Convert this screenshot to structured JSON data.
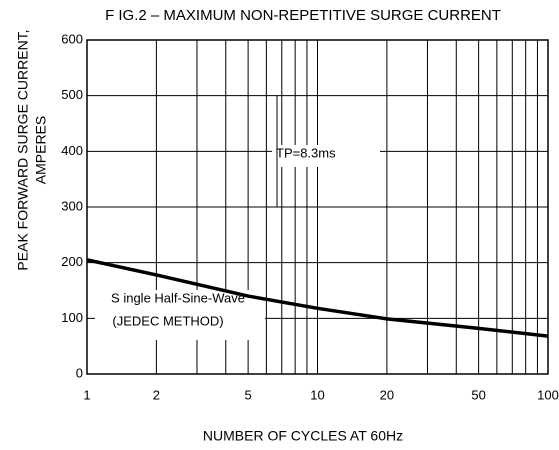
{
  "chart_data": {
    "type": "line",
    "title": "F IG.2 – MAXIMUM NON-REPETITIVE SURGE CURRENT",
    "x_label": "NUMBER OF CYCLES AT 60Hz",
    "y_label": [
      "PEAK FORWARD SURGE CURRENT,",
      "AMPERES"
    ],
    "annotations": [
      "TP=8.3ms",
      "S ingle Half-Sine-Wave",
      "(JEDEC METHOD)"
    ],
    "x_scale": "log",
    "xlim": [
      1,
      100
    ],
    "xticks": [
      1,
      2,
      5,
      10,
      20,
      50,
      100
    ],
    "minor_xticks": [
      3,
      4,
      6,
      7,
      8,
      9,
      30,
      40,
      60,
      70,
      80,
      90
    ],
    "ylim": [
      0,
      600
    ],
    "yticks": [
      0,
      100,
      200,
      300,
      400,
      500,
      600
    ],
    "grid": true,
    "series": [
      {
        "color": "#000000",
        "x": [
          1,
          2,
          5,
          10,
          20,
          50,
          100
        ],
        "values": [
          205,
          178,
          140,
          118,
          99,
          82,
          68
        ]
      }
    ]
  }
}
